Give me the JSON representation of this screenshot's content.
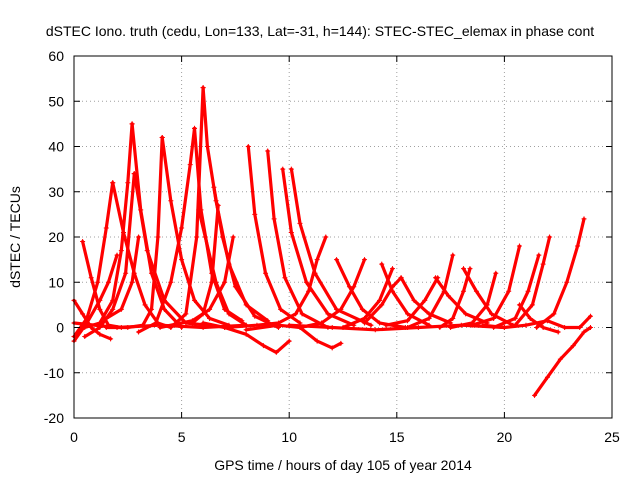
{
  "chart_data": {
    "type": "scatter",
    "title": "dSTEC Iono. truth (cedu, Lon=133, Lat=-31, h=144): STEC-STEC_elemax in phase cont",
    "xlabel": "GPS time / hours of day 105 of year 2014",
    "ylabel": "dSTEC  / TECUs",
    "xlim": [
      0,
      25
    ],
    "ylim": [
      -20,
      60
    ],
    "xticks": [
      0,
      5,
      10,
      15,
      20,
      25
    ],
    "yticks": [
      -20,
      -10,
      0,
      10,
      20,
      30,
      40,
      50,
      60
    ],
    "xtick_labels": [
      "0",
      "5",
      "10",
      "15",
      "20",
      "25"
    ],
    "ytick_labels": [
      "-20",
      "-10",
      "0",
      "10",
      "20",
      "30",
      "40",
      "50",
      "60"
    ],
    "grid": true,
    "legend": "none",
    "marker": "plus",
    "color": "#ff0000",
    "series": [
      {
        "points": [
          [
            0.0,
            -3
          ],
          [
            0.6,
            1
          ],
          [
            1.2,
            6
          ],
          [
            1.6,
            10
          ],
          [
            2.0,
            16
          ]
        ]
      },
      {
        "points": [
          [
            0.0,
            6
          ],
          [
            0.4,
            3
          ],
          [
            0.8,
            0
          ],
          [
            1.2,
            -1.5
          ],
          [
            1.7,
            -2.5
          ]
        ]
      },
      {
        "points": [
          [
            0.4,
            19
          ],
          [
            0.8,
            11
          ],
          [
            1.2,
            4
          ],
          [
            1.6,
            0.5
          ],
          [
            2.2,
            0
          ]
        ]
      },
      {
        "points": [
          [
            0.0,
            -2
          ],
          [
            0.6,
            2
          ],
          [
            1.1,
            10
          ],
          [
            1.5,
            22
          ],
          [
            1.8,
            32
          ]
        ]
      },
      {
        "points": [
          [
            1.8,
            32
          ],
          [
            2.3,
            21
          ],
          [
            2.8,
            12
          ],
          [
            3.3,
            5
          ],
          [
            3.9,
            1
          ],
          [
            4.5,
            0
          ]
        ]
      },
      {
        "points": [
          [
            0.5,
            0
          ],
          [
            1.2,
            1
          ],
          [
            1.8,
            6
          ],
          [
            2.2,
            17
          ],
          [
            2.5,
            32
          ],
          [
            2.7,
            45
          ]
        ]
      },
      {
        "points": [
          [
            2.7,
            45
          ],
          [
            3.1,
            26
          ],
          [
            3.6,
            12
          ],
          [
            4.2,
            4
          ],
          [
            5.0,
            0
          ]
        ]
      },
      {
        "points": [
          [
            0.5,
            -2
          ],
          [
            1.2,
            0
          ],
          [
            1.8,
            4
          ],
          [
            2.4,
            12
          ],
          [
            2.8,
            34
          ]
        ]
      },
      {
        "points": [
          [
            2.8,
            34
          ],
          [
            3.4,
            17
          ],
          [
            4.2,
            6
          ],
          [
            5.2,
            1
          ],
          [
            6.2,
            0.5
          ]
        ]
      },
      {
        "points": [
          [
            1.5,
            2
          ],
          [
            2.2,
            4
          ],
          [
            2.7,
            10
          ],
          [
            3.0,
            20
          ]
        ]
      },
      {
        "points": [
          [
            1.5,
            0
          ],
          [
            2.5,
            0
          ],
          [
            3.2,
            0.5
          ],
          [
            3.6,
            4
          ],
          [
            3.9,
            20
          ],
          [
            4.1,
            42
          ]
        ]
      },
      {
        "points": [
          [
            4.1,
            42
          ],
          [
            4.5,
            28
          ],
          [
            5.0,
            15
          ],
          [
            5.6,
            6
          ],
          [
            6.3,
            2
          ],
          [
            7.2,
            0.5
          ]
        ]
      },
      {
        "points": [
          [
            3.0,
            -1
          ],
          [
            3.8,
            1
          ],
          [
            4.5,
            10
          ],
          [
            5.0,
            22
          ],
          [
            5.4,
            36
          ],
          [
            5.6,
            44
          ]
        ]
      },
      {
        "points": [
          [
            5.6,
            44
          ],
          [
            5.9,
            26
          ],
          [
            6.4,
            12
          ],
          [
            7.0,
            4
          ],
          [
            7.8,
            1.5
          ]
        ]
      },
      {
        "points": [
          [
            4.5,
            0
          ],
          [
            5.2,
            3
          ],
          [
            5.7,
            20
          ],
          [
            6.0,
            53
          ]
        ]
      },
      {
        "points": [
          [
            6.0,
            53
          ],
          [
            6.2,
            40
          ],
          [
            6.6,
            28
          ],
          [
            7.2,
            14
          ],
          [
            8.0,
            5
          ],
          [
            9.0,
            1.5
          ]
        ]
      },
      {
        "points": [
          [
            5.8,
            26
          ],
          [
            6.1,
            20
          ],
          [
            6.6,
            10
          ],
          [
            7.2,
            3
          ],
          [
            8.0,
            0.5
          ]
        ]
      },
      {
        "points": [
          [
            5.5,
            1
          ],
          [
            6.0,
            3
          ],
          [
            6.4,
            10
          ],
          [
            6.7,
            27
          ]
        ]
      },
      {
        "points": [
          [
            6.5,
            31
          ],
          [
            6.9,
            20
          ],
          [
            7.5,
            9
          ],
          [
            8.4,
            2.5
          ],
          [
            9.5,
            0
          ]
        ]
      },
      {
        "points": [
          [
            4.0,
            0
          ],
          [
            5.5,
            1.5
          ],
          [
            6.3,
            4
          ],
          [
            7.0,
            10
          ],
          [
            7.4,
            20
          ]
        ]
      },
      {
        "points": [
          [
            8.1,
            40
          ],
          [
            8.4,
            25
          ],
          [
            8.9,
            12
          ],
          [
            9.6,
            4
          ],
          [
            10.5,
            1
          ]
        ]
      },
      {
        "points": [
          [
            9.0,
            39
          ],
          [
            9.3,
            24
          ],
          [
            9.8,
            11
          ],
          [
            10.6,
            3
          ],
          [
            11.8,
            0
          ]
        ]
      },
      {
        "points": [
          [
            9.7,
            35
          ],
          [
            10.1,
            21
          ],
          [
            10.8,
            10
          ],
          [
            11.8,
            3
          ],
          [
            13.0,
            0.5
          ]
        ]
      },
      {
        "points": [
          [
            10.1,
            35
          ],
          [
            10.5,
            23
          ],
          [
            11.2,
            12
          ],
          [
            12.2,
            4
          ],
          [
            13.8,
            0.5
          ]
        ]
      },
      {
        "points": [
          [
            6.0,
            1
          ],
          [
            7.0,
            0
          ],
          [
            8.0,
            -1.5
          ],
          [
            8.8,
            -4
          ],
          [
            9.4,
            -5.5
          ],
          [
            10.0,
            -3
          ]
        ]
      },
      {
        "points": [
          [
            8.0,
            -0.5
          ],
          [
            9.5,
            0.5
          ],
          [
            10.5,
            0
          ],
          [
            11.3,
            -3
          ],
          [
            12.0,
            -4.5
          ],
          [
            12.4,
            -3.5
          ]
        ]
      },
      {
        "points": [
          [
            7.0,
            0
          ],
          [
            8.5,
            0.5
          ],
          [
            9.5,
            1
          ],
          [
            10.3,
            3
          ],
          [
            10.9,
            8
          ],
          [
            11.3,
            15
          ],
          [
            11.7,
            20
          ]
        ]
      },
      {
        "points": [
          [
            10.5,
            0
          ],
          [
            11.5,
            1
          ],
          [
            12.4,
            4
          ],
          [
            13.0,
            9
          ],
          [
            13.5,
            15
          ]
        ]
      },
      {
        "points": [
          [
            12.2,
            15
          ],
          [
            12.8,
            9
          ],
          [
            13.4,
            4
          ],
          [
            14.2,
            1
          ],
          [
            15.4,
            0
          ]
        ]
      },
      {
        "points": [
          [
            14.3,
            14
          ],
          [
            14.8,
            8
          ],
          [
            15.5,
            3
          ],
          [
            16.5,
            0.5
          ]
        ]
      },
      {
        "points": [
          [
            12.5,
            0
          ],
          [
            13.5,
            2
          ],
          [
            14.2,
            6
          ],
          [
            14.8,
            13
          ]
        ]
      },
      {
        "points": [
          [
            13.5,
            1
          ],
          [
            14.3,
            5
          ],
          [
            14.8,
            9
          ],
          [
            15.2,
            11
          ]
        ]
      },
      {
        "points": [
          [
            15.2,
            11
          ],
          [
            15.8,
            6
          ],
          [
            16.5,
            3
          ],
          [
            17.5,
            1
          ]
        ]
      },
      {
        "points": [
          [
            14.5,
            0.5
          ],
          [
            15.5,
            1.5
          ],
          [
            16.3,
            6
          ],
          [
            16.9,
            11
          ]
        ]
      },
      {
        "points": [
          [
            16.8,
            11
          ],
          [
            17.4,
            7
          ],
          [
            18.2,
            3
          ],
          [
            19.2,
            1
          ]
        ]
      },
      {
        "points": [
          [
            15.5,
            0
          ],
          [
            16.5,
            2
          ],
          [
            17.2,
            8
          ],
          [
            17.6,
            16
          ]
        ]
      },
      {
        "points": [
          [
            17.0,
            0
          ],
          [
            17.6,
            2
          ],
          [
            18.1,
            8
          ],
          [
            18.4,
            13
          ]
        ]
      },
      {
        "points": [
          [
            18.1,
            13
          ],
          [
            18.7,
            8
          ],
          [
            19.4,
            3
          ],
          [
            20.4,
            0.5
          ]
        ]
      },
      {
        "points": [
          [
            17.5,
            0
          ],
          [
            18.5,
            1
          ],
          [
            19.2,
            5
          ],
          [
            19.6,
            12
          ]
        ]
      },
      {
        "points": [
          [
            18.5,
            0.5
          ],
          [
            19.5,
            2
          ],
          [
            20.2,
            8
          ],
          [
            20.7,
            18
          ]
        ]
      },
      {
        "points": [
          [
            19.5,
            0
          ],
          [
            20.5,
            2
          ],
          [
            21.1,
            8
          ],
          [
            21.6,
            16
          ]
        ]
      },
      {
        "points": [
          [
            20.5,
            0.5
          ],
          [
            21.3,
            5
          ],
          [
            21.8,
            14
          ],
          [
            22.1,
            20
          ]
        ]
      },
      {
        "points": [
          [
            20.7,
            5
          ],
          [
            21.2,
            2
          ],
          [
            21.8,
            0
          ],
          [
            22.5,
            -1
          ]
        ]
      },
      {
        "points": [
          [
            21.5,
            0
          ],
          [
            22.3,
            3
          ],
          [
            22.9,
            10
          ],
          [
            23.4,
            18
          ],
          [
            23.7,
            24
          ]
        ]
      },
      {
        "points": [
          [
            21.4,
            -15
          ],
          [
            22.0,
            -11
          ],
          [
            22.6,
            -7
          ],
          [
            23.2,
            -4
          ],
          [
            23.7,
            -1
          ],
          [
            24.0,
            0
          ]
        ]
      },
      {
        "points": [
          [
            19.0,
            0.5
          ],
          [
            20.0,
            0
          ],
          [
            21.0,
            0.5
          ],
          [
            22.0,
            1.5
          ],
          [
            22.8,
            0
          ],
          [
            23.5,
            0
          ],
          [
            24.0,
            2.5
          ]
        ]
      },
      {
        "points": [
          [
            0.0,
            1
          ],
          [
            2.0,
            0
          ],
          [
            4.0,
            0.5
          ],
          [
            6.0,
            0
          ],
          [
            8.0,
            0.5
          ]
        ]
      },
      {
        "points": [
          [
            10.0,
            0.5
          ],
          [
            12.0,
            0
          ],
          [
            14.0,
            -0.5
          ],
          [
            16.0,
            0
          ],
          [
            18.0,
            0.5
          ],
          [
            20.0,
            0
          ]
        ]
      }
    ]
  }
}
